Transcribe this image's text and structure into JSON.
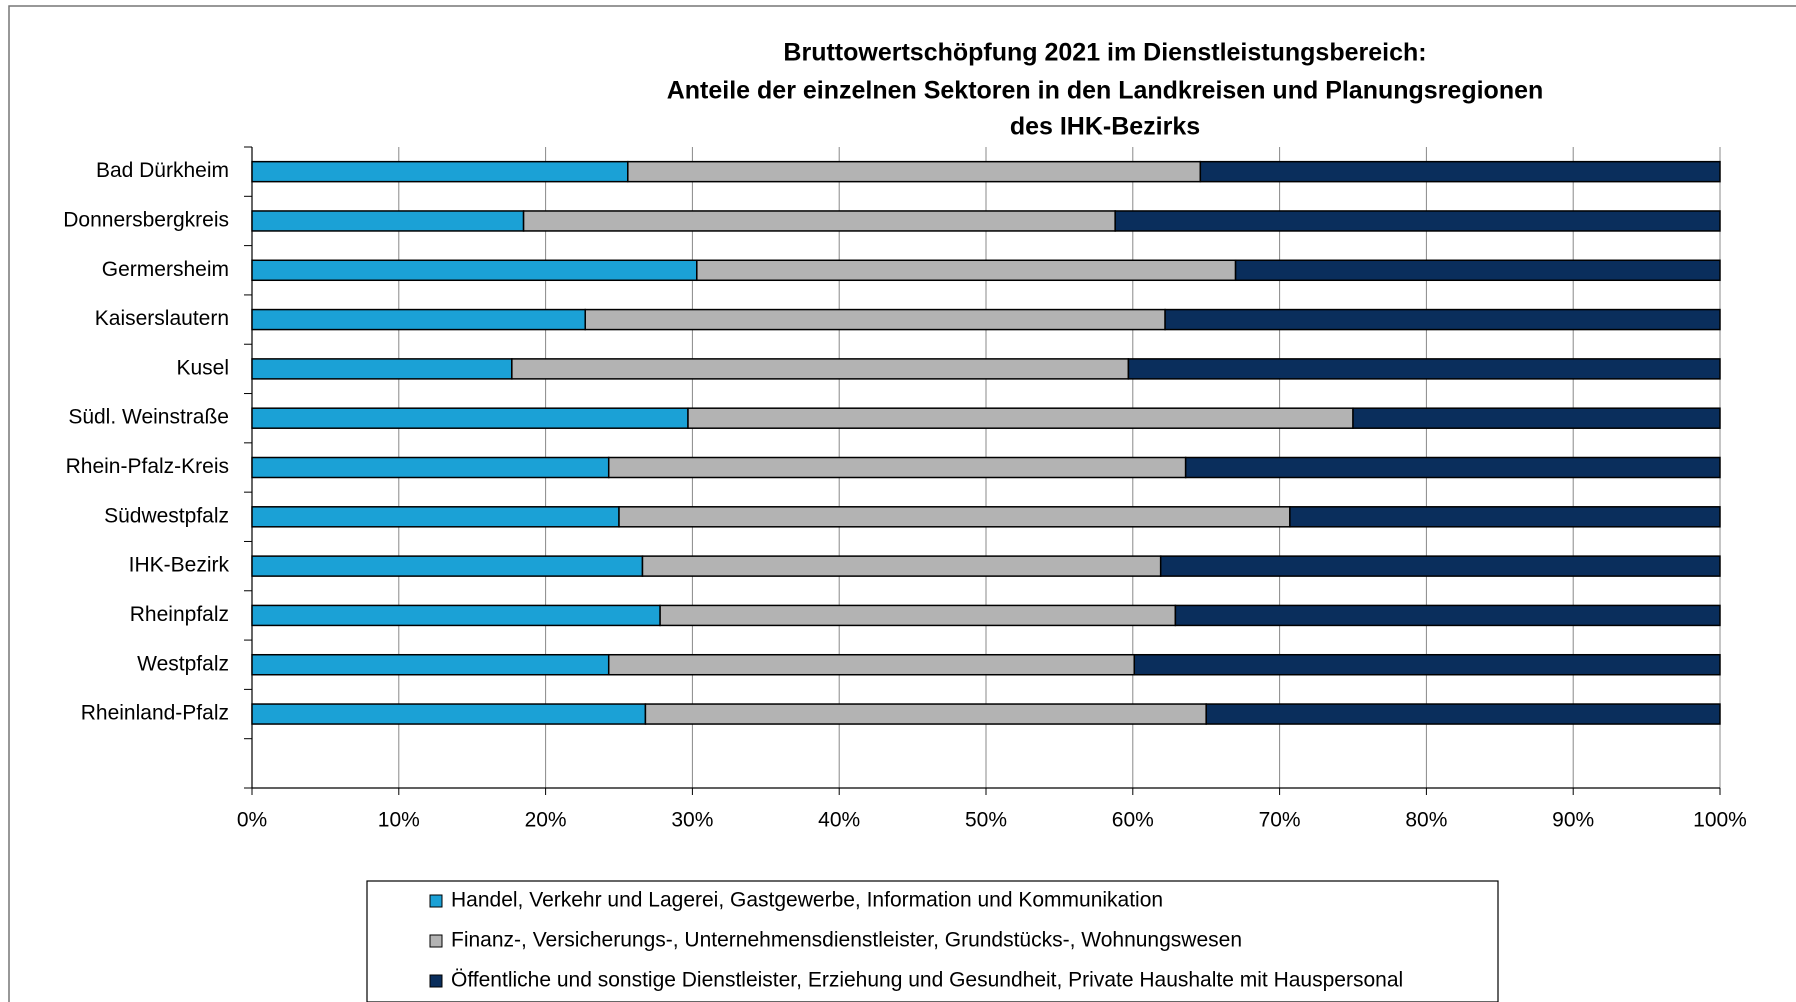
{
  "chart_data": {
    "type": "stacked_bar_horizontal",
    "title": [
      "Bruttowertschöpfung 2021 im Dienstleistungsbereich:",
      "Anteile der einzelnen Sektoren in den Landkreisen und Planungsregionen",
      "des IHK-Bezirks"
    ],
    "categories": [
      "Bad Dürkheim",
      "Donnersbergkreis",
      "Germersheim",
      "Kaiserslautern",
      "Kusel",
      "Südl. Weinstraße",
      "Rhein-Pfalz-Kreis",
      "Südwestpfalz",
      "IHK-Bezirk",
      "Rheinpfalz",
      "Westpfalz",
      "Rheinland-Pfalz"
    ],
    "series": [
      {
        "name": "Handel, Verkehr und Lagerei, Gastgewerbe, Information und Kommunikation",
        "color": "#1ba1d6",
        "values": [
          25.6,
          18.5,
          30.3,
          22.7,
          17.7,
          29.7,
          24.3,
          25.0,
          26.6,
          27.8,
          24.3,
          26.8
        ]
      },
      {
        "name": "Finanz-, Versicherungs-, Unternehmensdienstleister, Grundstücks-, Wohnungswesen",
        "color": "#b3b3b3",
        "values": [
          39.0,
          40.3,
          36.7,
          39.5,
          42.0,
          45.3,
          39.3,
          45.7,
          35.3,
          35.1,
          35.8,
          38.2
        ]
      },
      {
        "name": "Öffentliche und sonstige Dienstleister, Erziehung und Gesundheit, Private Haushalte mit Hauspersonal",
        "color": "#0a2e5c",
        "values": [
          35.4,
          41.2,
          33.0,
          37.8,
          40.3,
          25.0,
          36.4,
          29.3,
          38.1,
          37.1,
          39.9,
          35.0
        ]
      }
    ],
    "xlim": [
      0,
      100
    ],
    "xticks": [
      {
        "value": 0,
        "label": "0%"
      },
      {
        "value": 10,
        "label": "10%"
      },
      {
        "value": 20,
        "label": "20%"
      },
      {
        "value": 30,
        "label": "30%"
      },
      {
        "value": 40,
        "label": "40%"
      },
      {
        "value": 50,
        "label": "50%"
      },
      {
        "value": 60,
        "label": "60%"
      },
      {
        "value": 70,
        "label": "70%"
      },
      {
        "value": 80,
        "label": "80%"
      },
      {
        "value": 90,
        "label": "90%"
      },
      {
        "value": 100,
        "label": "100%"
      }
    ],
    "grid": true
  }
}
